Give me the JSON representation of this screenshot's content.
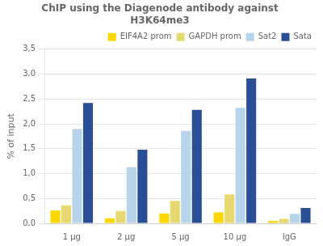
{
  "chart_data": {
    "type": "bar",
    "title": "ChIP using the Diagenode antibody against\nH3K64me3",
    "ylabel": "% of input",
    "categories": [
      "1 μg",
      "2 μg",
      "5 μg",
      "10 μg",
      "IgG"
    ],
    "series": [
      {
        "name": "EIF4A2 prom",
        "color": "#FFD700",
        "values": [
          0.26,
          0.1,
          0.2,
          0.22,
          0.05
        ]
      },
      {
        "name": "GAPDH prom",
        "color": "#E8D870",
        "values": [
          0.36,
          0.25,
          0.45,
          0.58,
          0.09
        ]
      },
      {
        "name": "Sat2",
        "color": "#B8D4EA",
        "values": [
          1.9,
          1.13,
          1.86,
          2.32,
          0.19
        ]
      },
      {
        "name": "Sata",
        "color": "#2B4F96",
        "values": [
          2.42,
          1.48,
          2.28,
          2.91,
          0.31
        ]
      }
    ],
    "ylim": [
      0,
      3.5
    ],
    "yticks": [
      {
        "value": 0.0,
        "label": "0,0"
      },
      {
        "value": 0.5,
        "label": "0,5"
      },
      {
        "value": 1.0,
        "label": "1,0"
      },
      {
        "value": 1.5,
        "label": "1,5"
      },
      {
        "value": 2.0,
        "label": "2,0"
      },
      {
        "value": 2.5,
        "label": "2,5"
      },
      {
        "value": 3.0,
        "label": "3,0"
      },
      {
        "value": 3.5,
        "label": "3,5"
      }
    ],
    "grid": true,
    "legend": "upper right"
  }
}
